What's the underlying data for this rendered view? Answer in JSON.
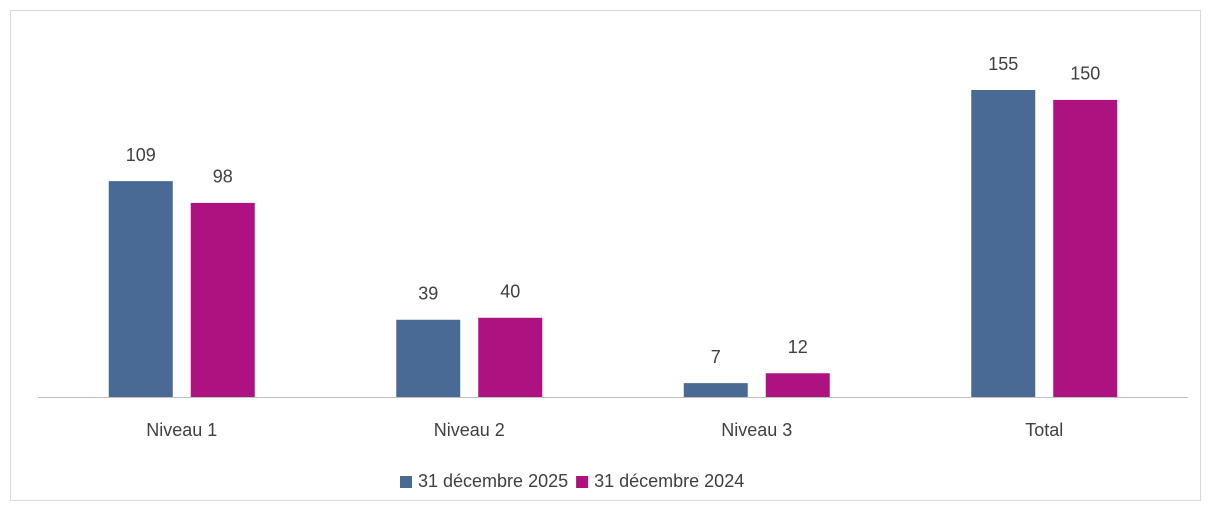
{
  "chart_data": {
    "type": "bar",
    "categories": [
      "Niveau 1",
      "Niveau 2",
      "Niveau 3",
      "Total"
    ],
    "series": [
      {
        "name": "31 décembre 2025",
        "color": "#4a6a96",
        "values": [
          109,
          39,
          7,
          155
        ]
      },
      {
        "name": "31 décembre 2024",
        "color": "#ae1280",
        "values": [
          98,
          40,
          12,
          150
        ]
      }
    ],
    "legend": "bottom"
  }
}
